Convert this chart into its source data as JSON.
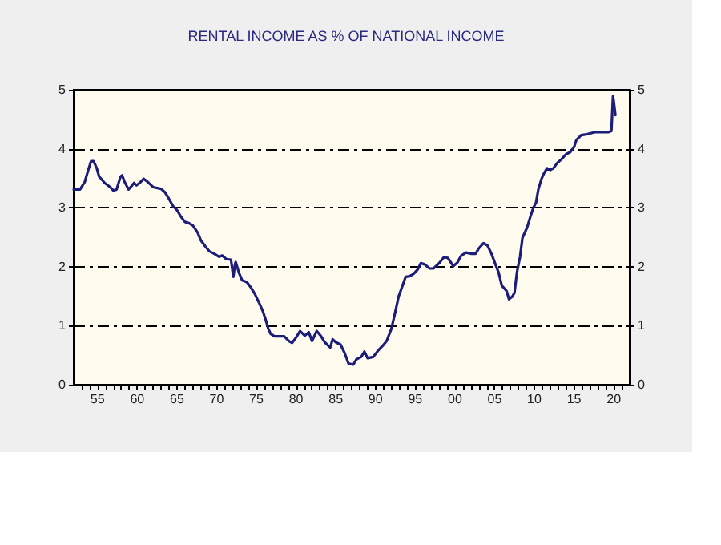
{
  "chart_data": {
    "type": "line",
    "title": "RENTAL INCOME AS % OF NATIONAL INCOME",
    "x": [
      1952.0,
      1952.8,
      1953.4,
      1953.9,
      1954.2,
      1954.5,
      1954.9,
      1955.2,
      1955.9,
      1956.6,
      1957.0,
      1957.4,
      1957.9,
      1958.1,
      1958.4,
      1958.9,
      1959.3,
      1959.6,
      1959.9,
      1960.3,
      1960.8,
      1961.3,
      1962.0,
      1963.0,
      1963.5,
      1964.0,
      1964.5,
      1965.0,
      1965.5,
      1966.0,
      1966.5,
      1967.0,
      1967.6,
      1968.0,
      1968.6,
      1969.1,
      1969.7,
      1970.3,
      1970.7,
      1971.2,
      1971.8,
      1972.1,
      1972.3,
      1972.4,
      1972.8,
      1973.2,
      1973.8,
      1974.3,
      1974.8,
      1975.3,
      1975.8,
      1976.1,
      1976.5,
      1976.8,
      1977.3,
      1977.8,
      1978.5,
      1979.1,
      1979.5,
      1980.0,
      1980.5,
      1981.1,
      1981.6,
      1982.0,
      1982.6,
      1983.1,
      1983.6,
      1984.3,
      1984.6,
      1985.0,
      1985.6,
      1986.1,
      1986.6,
      1987.2,
      1987.6,
      1988.2,
      1988.6,
      1989.0,
      1989.7,
      1990.4,
      1990.9,
      1991.4,
      1992.0,
      1992.4,
      1992.9,
      1993.4,
      1993.8,
      1994.3,
      1994.8,
      1995.3,
      1995.7,
      1996.2,
      1996.8,
      1997.3,
      1998.0,
      1998.6,
      1999.1,
      1999.8,
      2000.3,
      2000.8,
      2001.4,
      2002.1,
      2002.6,
      2003.0,
      2003.6,
      2004.1,
      2004.6,
      2005.1,
      2005.5,
      2005.9,
      2006.5,
      2006.8,
      2007.2,
      2007.5,
      2007.8,
      2008.2,
      2008.5,
      2009.1,
      2009.5,
      2009.9,
      2010.2,
      2010.5,
      2010.9,
      2011.2,
      2011.6,
      2012.0,
      2012.4,
      2012.9,
      2013.4,
      2014.0,
      2014.5,
      2015.0,
      2015.3,
      2015.9,
      2016.4,
      2017.0,
      2017.6,
      2018.6,
      2019.3,
      2019.7,
      2019.9,
      2020.0,
      2020.2
    ],
    "values": [
      3.31,
      3.31,
      3.44,
      3.67,
      3.79,
      3.79,
      3.67,
      3.53,
      3.42,
      3.35,
      3.29,
      3.31,
      3.53,
      3.55,
      3.44,
      3.31,
      3.37,
      3.42,
      3.38,
      3.42,
      3.49,
      3.44,
      3.35,
      3.32,
      3.26,
      3.15,
      3.03,
      2.96,
      2.85,
      2.76,
      2.74,
      2.7,
      2.58,
      2.45,
      2.34,
      2.26,
      2.22,
      2.17,
      2.19,
      2.13,
      2.12,
      1.83,
      2.04,
      2.08,
      1.9,
      1.77,
      1.74,
      1.65,
      1.54,
      1.4,
      1.25,
      1.13,
      0.95,
      0.86,
      0.82,
      0.82,
      0.82,
      0.74,
      0.71,
      0.8,
      0.91,
      0.83,
      0.89,
      0.74,
      0.91,
      0.83,
      0.72,
      0.63,
      0.77,
      0.72,
      0.68,
      0.54,
      0.36,
      0.34,
      0.43,
      0.47,
      0.56,
      0.45,
      0.47,
      0.59,
      0.66,
      0.74,
      0.95,
      1.18,
      1.49,
      1.68,
      1.83,
      1.84,
      1.88,
      1.95,
      2.06,
      2.04,
      1.97,
      1.97,
      2.06,
      2.16,
      2.15,
      2.01,
      2.07,
      2.19,
      2.24,
      2.22,
      2.22,
      2.31,
      2.4,
      2.36,
      2.22,
      2.04,
      1.9,
      1.68,
      1.59,
      1.45,
      1.49,
      1.56,
      1.9,
      2.17,
      2.49,
      2.67,
      2.85,
      3.01,
      3.08,
      3.31,
      3.49,
      3.58,
      3.67,
      3.64,
      3.67,
      3.76,
      3.82,
      3.91,
      3.94,
      4.03,
      4.15,
      4.23,
      4.24,
      4.26,
      4.28,
      4.28,
      4.28,
      4.3,
      4.89,
      4.8,
      4.57
    ],
    "color": "#1c1c7a",
    "xlim": [
      1952,
      2022
    ],
    "xticks": [
      {
        "value": 1953,
        "label": null
      },
      {
        "value": 1954,
        "label": null
      },
      {
        "value": 1955,
        "label": "55"
      },
      {
        "value": 1956,
        "label": null
      },
      {
        "value": 1957,
        "label": null
      },
      {
        "value": 1958,
        "label": null
      },
      {
        "value": 1959,
        "label": null
      },
      {
        "value": 1960,
        "label": "60"
      },
      {
        "value": 1961,
        "label": null
      },
      {
        "value": 1962,
        "label": null
      },
      {
        "value": 1963,
        "label": null
      },
      {
        "value": 1964,
        "label": null
      },
      {
        "value": 1965,
        "label": "65"
      },
      {
        "value": 1966,
        "label": null
      },
      {
        "value": 1967,
        "label": null
      },
      {
        "value": 1968,
        "label": null
      },
      {
        "value": 1969,
        "label": null
      },
      {
        "value": 1970,
        "label": "70"
      },
      {
        "value": 1971,
        "label": null
      },
      {
        "value": 1972,
        "label": null
      },
      {
        "value": 1973,
        "label": null
      },
      {
        "value": 1974,
        "label": null
      },
      {
        "value": 1975,
        "label": "75"
      },
      {
        "value": 1976,
        "label": null
      },
      {
        "value": 1977,
        "label": null
      },
      {
        "value": 1978,
        "label": null
      },
      {
        "value": 1979,
        "label": null
      },
      {
        "value": 1980,
        "label": "80"
      },
      {
        "value": 1981,
        "label": null
      },
      {
        "value": 1982,
        "label": null
      },
      {
        "value": 1983,
        "label": null
      },
      {
        "value": 1984,
        "label": null
      },
      {
        "value": 1985,
        "label": "85"
      },
      {
        "value": 1986,
        "label": null
      },
      {
        "value": 1987,
        "label": null
      },
      {
        "value": 1988,
        "label": null
      },
      {
        "value": 1989,
        "label": null
      },
      {
        "value": 1990,
        "label": "90"
      },
      {
        "value": 1991,
        "label": null
      },
      {
        "value": 1992,
        "label": null
      },
      {
        "value": 1993,
        "label": null
      },
      {
        "value": 1994,
        "label": null
      },
      {
        "value": 1995,
        "label": "95"
      },
      {
        "value": 1996,
        "label": null
      },
      {
        "value": 1997,
        "label": null
      },
      {
        "value": 1998,
        "label": null
      },
      {
        "value": 1999,
        "label": null
      },
      {
        "value": 2000,
        "label": "00"
      },
      {
        "value": 2001,
        "label": null
      },
      {
        "value": 2002,
        "label": null
      },
      {
        "value": 2003,
        "label": null
      },
      {
        "value": 2004,
        "label": null
      },
      {
        "value": 2005,
        "label": "05"
      },
      {
        "value": 2006,
        "label": null
      },
      {
        "value": 2007,
        "label": null
      },
      {
        "value": 2008,
        "label": null
      },
      {
        "value": 2009,
        "label": null
      },
      {
        "value": 2010,
        "label": "10"
      },
      {
        "value": 2011,
        "label": null
      },
      {
        "value": 2012,
        "label": null
      },
      {
        "value": 2013,
        "label": null
      },
      {
        "value": 2014,
        "label": null
      },
      {
        "value": 2015,
        "label": "15"
      },
      {
        "value": 2016,
        "label": null
      },
      {
        "value": 2017,
        "label": null
      },
      {
        "value": 2018,
        "label": null
      },
      {
        "value": 2019,
        "label": null
      },
      {
        "value": 2020,
        "label": "20"
      },
      {
        "value": 2021,
        "label": null
      }
    ],
    "ylim": [
      0,
      5
    ],
    "yticks": [
      0,
      1,
      2,
      3,
      4,
      5
    ],
    "y2lim": [
      0,
      5
    ],
    "y2ticks": [
      0,
      1,
      2,
      3,
      4,
      5
    ],
    "grid": "y"
  }
}
